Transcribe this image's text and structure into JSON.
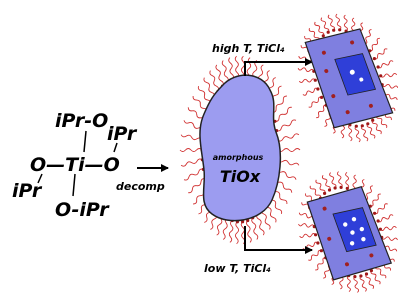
{
  "precursor": {
    "labels": [
      "iPr-O",
      "iPr",
      "O—Ti—O",
      "iPr",
      "O-iPr"
    ]
  },
  "arrow_label": "decomp",
  "particle": {
    "label_small": "amorphous",
    "label": "TiOx"
  },
  "branches": [
    {
      "label": "high T, TiCl₄"
    },
    {
      "label": "low T, TiCl₄"
    }
  ]
}
